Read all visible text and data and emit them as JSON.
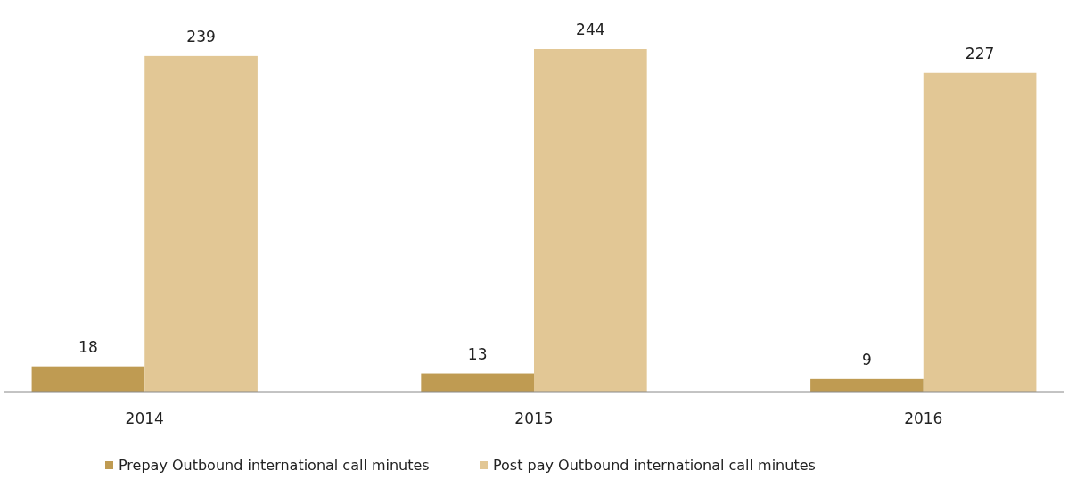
{
  "chart_data": {
    "type": "bar",
    "categories": [
      "2014",
      "2015",
      "2016"
    ],
    "series": [
      {
        "name": "Prepay Outbound international call minutes",
        "color": "#bf9b52",
        "values": [
          18,
          13,
          9
        ]
      },
      {
        "name": "Post pay Outbound international call minutes",
        "color": "#e2c795",
        "values": [
          239,
          244,
          227
        ]
      }
    ],
    "data_labels": true,
    "legend": "bottom"
  }
}
